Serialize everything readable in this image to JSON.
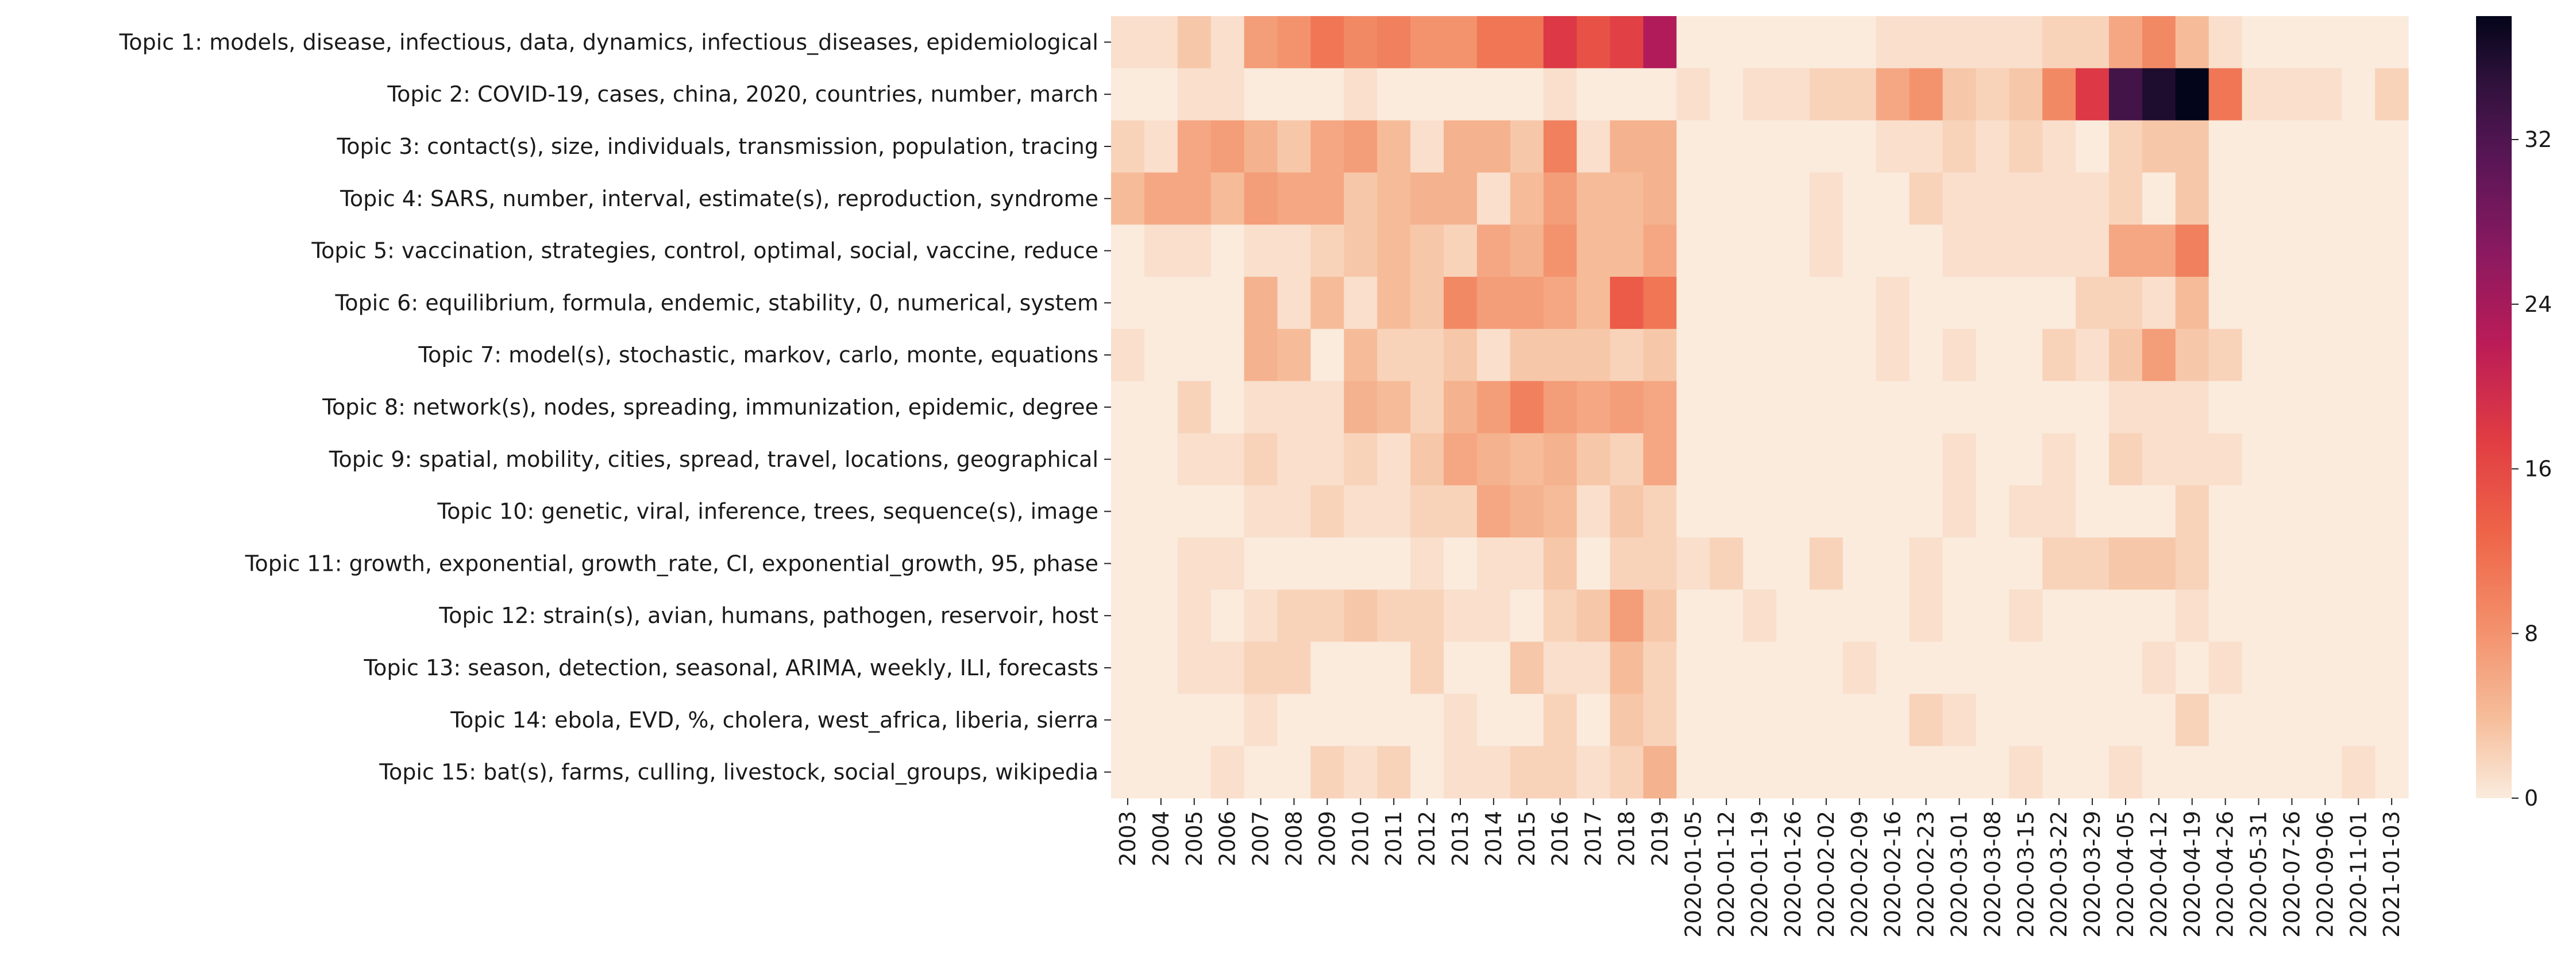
{
  "chart_data": {
    "type": "heatmap",
    "title": "",
    "xlabel": "",
    "ylabel": "",
    "rows": [
      "Topic 1: models, disease, infectious, data, dynamics, infectious_diseases, epidemiological",
      "Topic 2: COVID-19, cases, china, 2020, countries, number, march",
      "Topic 3: contact(s), size, individuals, transmission, population, tracing",
      "Topic 4: SARS, number, interval, estimate(s), reproduction, syndrome",
      "Topic 5: vaccination, strategies, control, optimal, social, vaccine, reduce",
      "Topic 6: equilibrium, formula, endemic, stability, 0, numerical, system",
      "Topic 7: model(s), stochastic, markov, carlo, monte, equations",
      "Topic 8: network(s), nodes, spreading, immunization, epidemic, degree",
      "Topic 9: spatial, mobility, cities, spread, travel, locations, geographical",
      "Topic 10: genetic, viral, inference, trees, sequence(s), image",
      "Topic 11: growth, exponential, growth_rate, CI, exponential_growth, 95, phase",
      "Topic 12: strain(s), avian, humans, pathogen, reservoir, host",
      "Topic 13: season, detection, seasonal, ARIMA, weekly, ILI, forecasts",
      "Topic 14: ebola, EVD, %, cholera, west_africa, liberia, sierra",
      "Topic 15: bat(s), farms, culling, livestock, social_groups, wikipedia"
    ],
    "columns": [
      "2003",
      "2004",
      "2005",
      "2006",
      "2007",
      "2008",
      "2009",
      "2010",
      "2011",
      "2012",
      "2013",
      "2014",
      "2015",
      "2016",
      "2017",
      "2018",
      "2019",
      "2020-01-05",
      "2020-01-12",
      "2020-01-19",
      "2020-01-26",
      "2020-02-02",
      "2020-02-09",
      "2020-02-16",
      "2020-02-23",
      "2020-03-01",
      "2020-03-08",
      "2020-03-15",
      "2020-03-22",
      "2020-03-29",
      "2020-04-05",
      "2020-04-12",
      "2020-04-19",
      "2020-04-26",
      "2020-05-31",
      "2020-07-26",
      "2020-09-06",
      "2020-11-01",
      "2021-01-03"
    ],
    "values": [
      [
        1,
        1,
        3,
        1,
        7,
        8,
        11,
        9,
        10,
        8,
        8,
        11,
        11,
        18,
        15,
        17,
        23,
        0,
        0,
        0,
        0,
        0,
        0,
        1,
        1,
        1,
        1,
        1,
        2,
        2,
        6,
        9,
        4,
        1,
        0,
        0,
        0,
        0,
        0
      ],
      [
        0,
        0,
        1,
        1,
        0,
        0,
        0,
        1,
        0,
        0,
        0,
        0,
        0,
        1,
        0,
        0,
        0,
        1,
        0,
        1,
        1,
        2,
        2,
        6,
        8,
        3,
        2,
        3,
        9,
        18,
        33,
        36,
        38,
        11,
        1,
        1,
        1,
        0,
        2
      ],
      [
        2,
        1,
        6,
        7,
        5,
        3,
        6,
        7,
        4,
        1,
        5,
        5,
        3,
        10,
        1,
        5,
        5,
        0,
        0,
        0,
        0,
        0,
        0,
        1,
        1,
        2,
        1,
        2,
        1,
        0,
        2,
        3,
        3,
        0,
        0,
        0,
        0,
        0,
        0
      ],
      [
        4,
        6,
        6,
        4,
        7,
        6,
        6,
        3,
        4,
        5,
        5,
        1,
        4,
        7,
        4,
        4,
        5,
        0,
        0,
        0,
        0,
        1,
        0,
        0,
        2,
        1,
        1,
        1,
        1,
        1,
        2,
        0,
        3,
        0,
        0,
        0,
        0,
        0,
        0
      ],
      [
        0,
        1,
        1,
        0,
        1,
        1,
        2,
        3,
        4,
        3,
        2,
        6,
        5,
        8,
        4,
        4,
        6,
        0,
        0,
        0,
        0,
        1,
        0,
        0,
        0,
        1,
        1,
        1,
        1,
        1,
        6,
        6,
        10,
        0,
        0,
        0,
        0,
        0,
        0
      ],
      [
        0,
        0,
        0,
        0,
        5,
        1,
        4,
        1,
        4,
        3,
        9,
        7,
        7,
        6,
        4,
        14,
        11,
        0,
        0,
        0,
        0,
        0,
        0,
        1,
        0,
        0,
        0,
        0,
        0,
        2,
        2,
        1,
        4,
        0,
        0,
        0,
        0,
        0,
        0
      ],
      [
        1,
        0,
        0,
        0,
        5,
        4,
        0,
        4,
        2,
        2,
        3,
        1,
        3,
        3,
        3,
        2,
        3,
        0,
        0,
        0,
        0,
        0,
        0,
        1,
        0,
        1,
        0,
        0,
        2,
        1,
        3,
        7,
        3,
        2,
        0,
        0,
        0,
        0,
        0
      ],
      [
        0,
        0,
        2,
        0,
        1,
        1,
        1,
        5,
        4,
        2,
        5,
        7,
        10,
        7,
        6,
        7,
        6,
        0,
        0,
        0,
        0,
        0,
        0,
        0,
        0,
        0,
        0,
        0,
        0,
        0,
        1,
        1,
        1,
        0,
        0,
        0,
        0,
        0,
        0
      ],
      [
        0,
        0,
        1,
        1,
        2,
        1,
        1,
        2,
        1,
        3,
        6,
        5,
        4,
        5,
        3,
        2,
        6,
        0,
        0,
        0,
        0,
        0,
        0,
        0,
        0,
        1,
        0,
        0,
        1,
        0,
        2,
        1,
        1,
        1,
        0,
        0,
        0,
        0,
        0
      ],
      [
        0,
        0,
        0,
        0,
        1,
        1,
        2,
        1,
        1,
        2,
        2,
        6,
        5,
        4,
        1,
        3,
        2,
        0,
        0,
        0,
        0,
        0,
        0,
        0,
        0,
        1,
        0,
        1,
        1,
        0,
        0,
        0,
        2,
        0,
        0,
        0,
        0,
        0,
        0
      ],
      [
        0,
        0,
        1,
        1,
        0,
        0,
        0,
        0,
        0,
        1,
        0,
        1,
        1,
        3,
        0,
        2,
        2,
        1,
        2,
        0,
        0,
        2,
        0,
        0,
        1,
        0,
        0,
        0,
        2,
        2,
        3,
        3,
        2,
        0,
        0,
        0,
        0,
        0,
        0
      ],
      [
        0,
        0,
        1,
        0,
        1,
        2,
        2,
        3,
        2,
        2,
        1,
        1,
        0,
        2,
        3,
        7,
        3,
        0,
        0,
        1,
        0,
        0,
        0,
        0,
        1,
        0,
        0,
        1,
        0,
        0,
        0,
        0,
        1,
        0,
        0,
        0,
        0,
        0,
        0
      ],
      [
        0,
        0,
        1,
        1,
        2,
        2,
        0,
        0,
        0,
        2,
        0,
        0,
        3,
        1,
        1,
        4,
        2,
        0,
        0,
        0,
        0,
        0,
        1,
        0,
        0,
        0,
        0,
        0,
        0,
        0,
        0,
        1,
        0,
        1,
        0,
        0,
        0,
        0,
        0
      ],
      [
        0,
        0,
        0,
        0,
        1,
        0,
        0,
        0,
        0,
        0,
        1,
        0,
        0,
        2,
        0,
        3,
        2,
        0,
        0,
        0,
        0,
        0,
        0,
        0,
        2,
        1,
        0,
        0,
        0,
        0,
        0,
        0,
        2,
        0,
        0,
        0,
        0,
        0,
        0
      ],
      [
        0,
        0,
        0,
        1,
        0,
        0,
        2,
        1,
        2,
        0,
        1,
        1,
        2,
        2,
        1,
        2,
        5,
        0,
        0,
        0,
        0,
        0,
        0,
        0,
        0,
        0,
        0,
        1,
        0,
        0,
        1,
        0,
        0,
        0,
        0,
        0,
        0,
        1,
        0
      ]
    ],
    "vmin": 0,
    "vmax": 38,
    "colormap": "rocket_r",
    "colorbar": {
      "ticks": [
        0,
        8,
        16,
        24,
        32
      ],
      "tick_labels": [
        "0",
        "8",
        "16",
        "24",
        "32"
      ]
    },
    "colors": {
      "low": "#faebdd",
      "high": "#03051a"
    }
  }
}
